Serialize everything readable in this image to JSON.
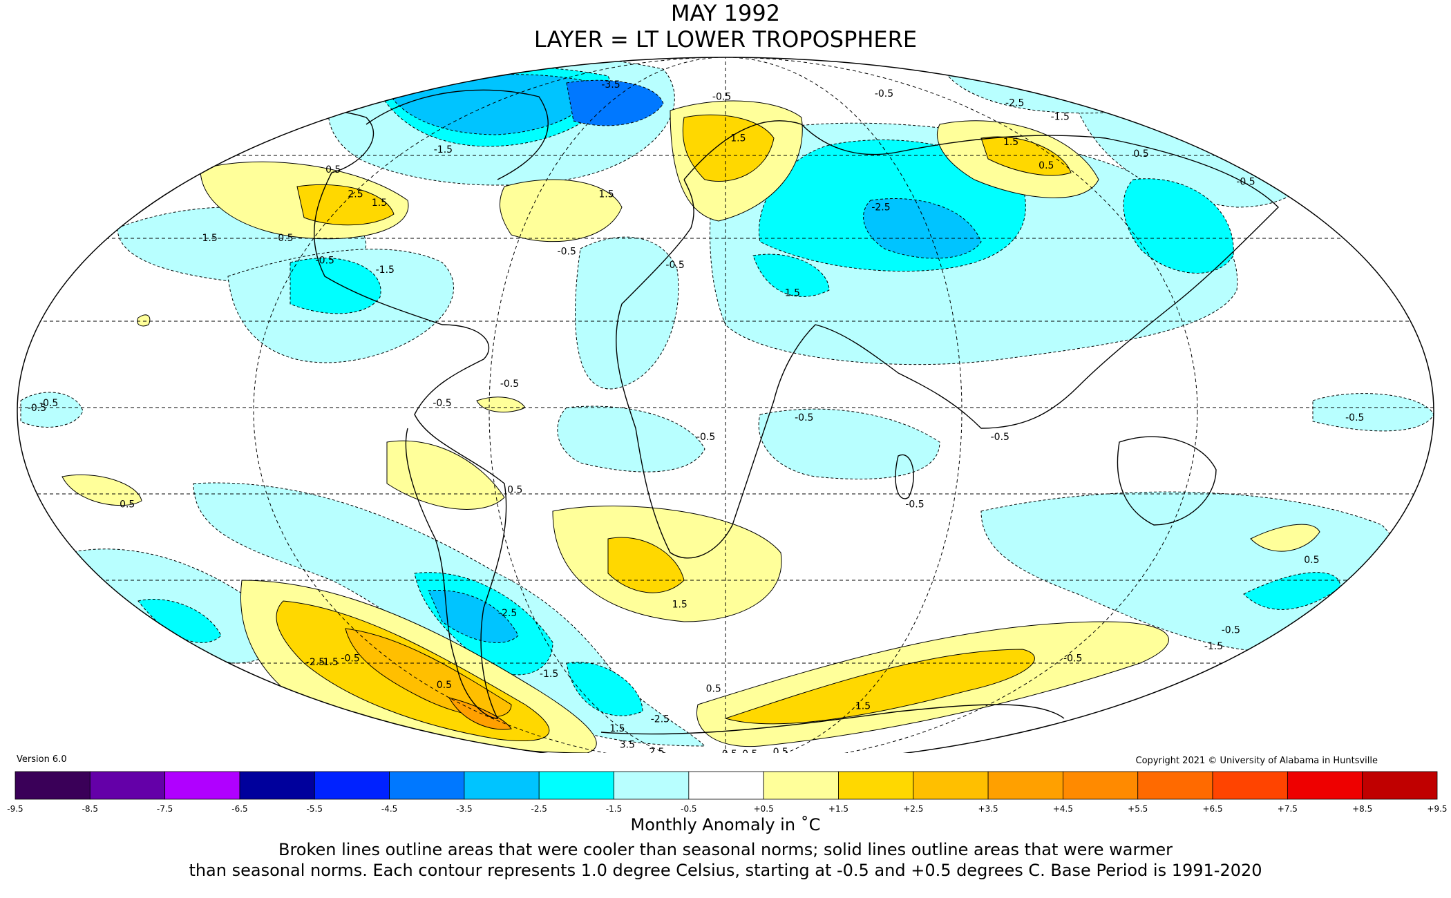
{
  "header": {
    "title": "MAY 1992",
    "subtitle": "LAYER = LT LOWER TROPOSPHERE"
  },
  "version": "Version 6.0",
  "copyright": "Copyright 2021 © University of Alabama in Huntsville",
  "colorbar": {
    "label": "Monthly Anomaly in ˚C",
    "bins": [
      {
        "lo": "-9.5",
        "color": "#3a0058"
      },
      {
        "lo": "-8.5",
        "color": "#6400a8"
      },
      {
        "lo": "-7.5",
        "color": "#b000ff"
      },
      {
        "lo": "-6.5",
        "color": "#00009c"
      },
      {
        "lo": "-5.5",
        "color": "#0022ff"
      },
      {
        "lo": "-4.5",
        "color": "#0078ff"
      },
      {
        "lo": "-3.5",
        "color": "#00c4ff"
      },
      {
        "lo": "-2.5",
        "color": "#00ffff"
      },
      {
        "lo": "-1.5",
        "color": "#b8ffff"
      },
      {
        "lo": "-0.5",
        "color": "#ffffff"
      },
      {
        "lo": "+0.5",
        "color": "#ffff9a"
      },
      {
        "lo": "+1.5",
        "color": "#ffd800"
      },
      {
        "lo": "+2.5",
        "color": "#ffbf00"
      },
      {
        "lo": "+3.5",
        "color": "#ffa000"
      },
      {
        "lo": "+4.5",
        "color": "#ff8a00"
      },
      {
        "lo": "+5.5",
        "color": "#ff6a00"
      },
      {
        "lo": "+6.5",
        "color": "#ff4400"
      },
      {
        "lo": "+7.5",
        "color": "#ee0000"
      },
      {
        "lo": "+8.5",
        "color": "#c00000"
      }
    ],
    "last_tick": "+9.5"
  },
  "footer": {
    "line1": "Monthly Anomaly in ˚C",
    "line2": "Broken lines outline areas that were cooler than seasonal norms; solid lines outline areas that were warmer",
    "line3": "than seasonal norms. Each contour represents 1.0 degree Celsius, starting at -0.5 and +0.5 degrees C. Base Period is 1991-2020"
  },
  "map": {
    "projection": "mollweide",
    "contour_labels": [
      {
        "text": "-3.5",
        "lon": -72,
        "lat": 76
      },
      {
        "text": "-1.5",
        "lon": -105,
        "lat": 57
      },
      {
        "text": "0.5",
        "lon": -135,
        "lat": 52
      },
      {
        "text": "2.5",
        "lon": -118,
        "lat": 46
      },
      {
        "text": "1.5",
        "lon": -108,
        "lat": 44
      },
      {
        "text": "-1.5",
        "lon": -150,
        "lat": 36
      },
      {
        "text": "-0.5",
        "lon": -128,
        "lat": 36
      },
      {
        "text": "-0.5",
        "lon": -112,
        "lat": 31
      },
      {
        "text": "-1.5",
        "lon": -94,
        "lat": 29
      },
      {
        "text": "1.5",
        "lon": -38,
        "lat": 46
      },
      {
        "text": "-0.5",
        "lon": -45,
        "lat": 33
      },
      {
        "text": "-0.5",
        "lon": -14,
        "lat": 30
      },
      {
        "text": "-0.5",
        "lon": -2,
        "lat": 72
      },
      {
        "text": "1.5",
        "lon": 5,
        "lat": 60
      },
      {
        "text": "1.5",
        "lon": 18,
        "lat": 24
      },
      {
        "text": "-2.5",
        "lon": 48,
        "lat": 43
      },
      {
        "text": "1.5",
        "lon": 110,
        "lat": 59
      },
      {
        "text": "0.5",
        "lon": 112,
        "lat": 53
      },
      {
        "text": "-0.5",
        "lon": 88,
        "lat": 73
      },
      {
        "text": "-2.5",
        "lon": 145,
        "lat": 70
      },
      {
        "text": "-1.5",
        "lon": 150,
        "lat": 66
      },
      {
        "text": "0.5",
        "lon": 152,
        "lat": 56
      },
      {
        "text": "-0.5",
        "lon": 172,
        "lat": 49
      },
      {
        "text": "-0.5",
        "lon": -175,
        "lat": 0
      },
      {
        "text": "-0.5",
        "lon": -172,
        "lat": 1
      },
      {
        "text": "0.5",
        "lon": -158,
        "lat": -20
      },
      {
        "text": "-0.5",
        "lon": -72,
        "lat": 1
      },
      {
        "text": "-0.5",
        "lon": -55,
        "lat": 5
      },
      {
        "text": "0.5",
        "lon": -55,
        "lat": -17
      },
      {
        "text": "1.5",
        "lon": -14,
        "lat": -42
      },
      {
        "text": "0.5",
        "lon": -5,
        "lat": -63
      },
      {
        "text": "-2.5",
        "lon": -68,
        "lat": -44
      },
      {
        "text": "-1.5",
        "lon": -68,
        "lat": -59
      },
      {
        "text": "-0.5",
        "lon": -5,
        "lat": -6
      },
      {
        "text": "-0.5",
        "lon": 20,
        "lat": -2
      },
      {
        "text": "-0.5",
        "lon": 50,
        "lat": -20
      },
      {
        "text": "-0.5",
        "lon": 70,
        "lat": -6
      },
      {
        "text": "-0.5",
        "lon": 160,
        "lat": -2
      },
      {
        "text": "0.5",
        "lon": 165,
        "lat": -32
      },
      {
        "text": "-0.5",
        "lon": 125,
        "lat": -55
      },
      {
        "text": "-0.5",
        "lon": 165,
        "lat": -48
      },
      {
        "text": "-1.5",
        "lon": 168,
        "lat": -52
      },
      {
        "text": "-2.5",
        "lon": -150,
        "lat": -56
      },
      {
        "text": "-1.5",
        "lon": -145,
        "lat": -56
      },
      {
        "text": "-0.5",
        "lon": -135,
        "lat": -55
      },
      {
        "text": "0.5",
        "lon": -115,
        "lat": -62
      },
      {
        "text": "1.5",
        "lon": -65,
        "lat": -75
      },
      {
        "text": "3.5",
        "lon": -82,
        "lat": -81
      },
      {
        "text": "2.5",
        "lon": -75,
        "lat": -84
      },
      {
        "text": "-2.5",
        "lon": -35,
        "lat": -72
      },
      {
        "text": "1.5",
        "lon": 65,
        "lat": -68
      },
      {
        "text": "0.5",
        "lon": 5,
        "lat": -85
      },
      {
        "text": "0.5",
        "lon": 30,
        "lat": -85
      },
      {
        "text": "0.5",
        "lon": 60,
        "lat": -84
      }
    ]
  }
}
